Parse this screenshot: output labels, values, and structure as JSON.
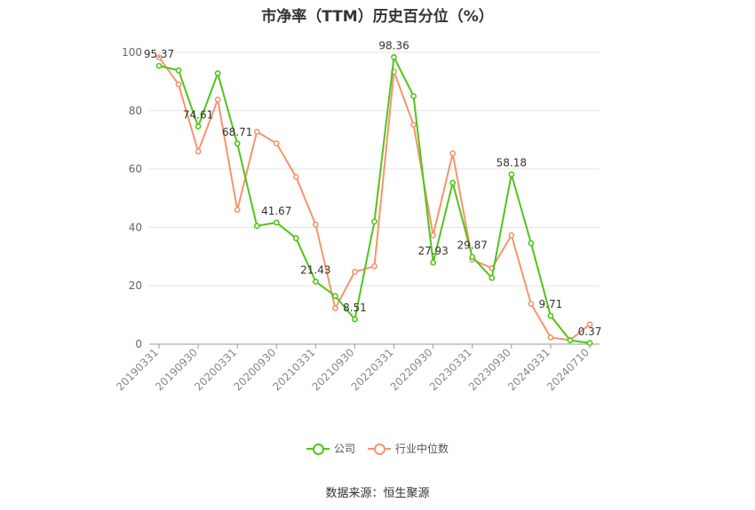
{
  "chart_data": {
    "type": "line",
    "title": "市净率（TTM）历史百分位（%）",
    "source": "数据来源：恒生聚源",
    "ylim": [
      0,
      100
    ],
    "yticks": [
      0,
      20,
      40,
      60,
      80,
      100
    ],
    "grid": true,
    "legend_position": "bottom",
    "x": [
      "20190331",
      "20190630",
      "20190930",
      "20191231",
      "20200331",
      "20200630",
      "20200930",
      "20201231",
      "20210331",
      "20210630",
      "20210930",
      "20211231",
      "20220331",
      "20220630",
      "20220930",
      "20221231",
      "20230331",
      "20230630",
      "20230930",
      "20231231",
      "20240331",
      "20240630",
      "20240710"
    ],
    "xticks": [
      "20190331",
      "20190930",
      "20200331",
      "20200930",
      "20210331",
      "20210930",
      "20220331",
      "20220930",
      "20230331",
      "20230930",
      "20240331",
      "20240710"
    ],
    "series": [
      {
        "name": "公司",
        "color": "#52c41a",
        "values": [
          95.37,
          93.8,
          74.61,
          92.8,
          68.71,
          40.5,
          41.67,
          36.3,
          21.43,
          16.5,
          8.51,
          42.0,
          98.36,
          85.0,
          27.93,
          55.3,
          29.87,
          22.7,
          58.18,
          34.6,
          9.71,
          1.3,
          0.37
        ]
      },
      {
        "name": "行业中位数",
        "color": "#f5956b",
        "values": [
          98.3,
          89.0,
          66.0,
          83.8,
          46.0,
          72.8,
          68.8,
          57.3,
          41.0,
          12.3,
          24.8,
          26.7,
          93.4,
          75.2,
          37.3,
          65.4,
          29.0,
          26.0,
          37.3,
          13.8,
          2.3,
          1.4,
          6.8
        ]
      }
    ],
    "data_labels": [
      {
        "series": 0,
        "index": 0,
        "text": "95.37"
      },
      {
        "series": 0,
        "index": 2,
        "text": "74.61"
      },
      {
        "series": 0,
        "index": 4,
        "text": "68.71"
      },
      {
        "series": 0,
        "index": 6,
        "text": "41.67"
      },
      {
        "series": 0,
        "index": 8,
        "text": "21.43"
      },
      {
        "series": 0,
        "index": 10,
        "text": "8.51"
      },
      {
        "series": 0,
        "index": 12,
        "text": "98.36"
      },
      {
        "series": 0,
        "index": 14,
        "text": "27.93"
      },
      {
        "series": 0,
        "index": 16,
        "text": "29.87"
      },
      {
        "series": 0,
        "index": 18,
        "text": "58.18"
      },
      {
        "series": 0,
        "index": 20,
        "text": "9.71"
      },
      {
        "series": 0,
        "index": 22,
        "text": "0.37"
      }
    ]
  }
}
